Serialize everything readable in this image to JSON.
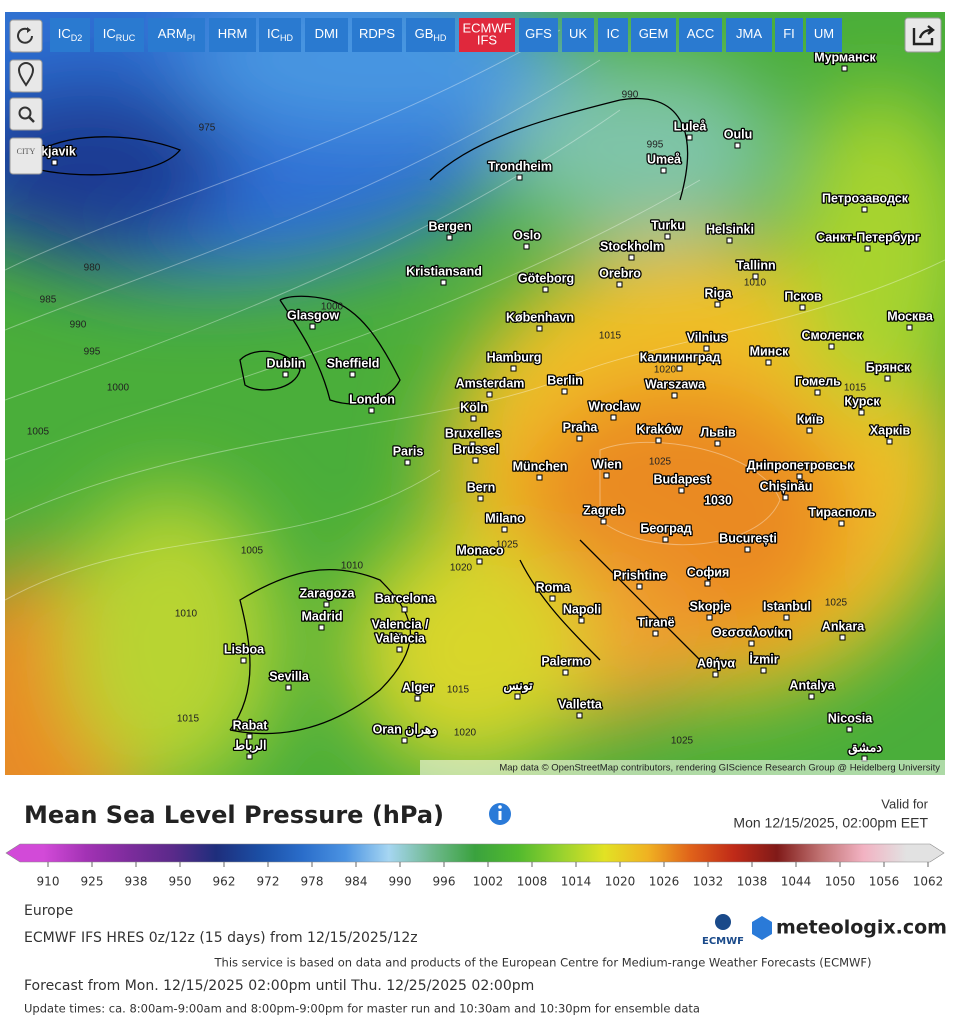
{
  "toolbar": {
    "models": [
      {
        "main": "IC",
        "sub": "D2"
      },
      {
        "main": "IC",
        "sub": "RUC"
      },
      {
        "main": "ARM",
        "sub": "PI"
      },
      {
        "main": "HRM"
      },
      {
        "main": "IC",
        "sub": "HD"
      },
      {
        "main": "DMI"
      },
      {
        "main": "RDPS"
      },
      {
        "main": "GB",
        "sub": "HD"
      },
      {
        "main": "ECMWF",
        "sub": "IFS",
        "active": true
      },
      {
        "main": "GFS"
      },
      {
        "main": "UK"
      },
      {
        "main": "IC"
      },
      {
        "main": "GEM"
      },
      {
        "main": "ACC"
      },
      {
        "main": "JMA"
      },
      {
        "main": "FI"
      },
      {
        "main": "UM"
      }
    ],
    "city_label": "CITY"
  },
  "map": {
    "cities": [
      "ykjavik",
      "Мурманск",
      "Luleå",
      "Oulu",
      "Umeå",
      "Trondheim",
      "Петрозаводск",
      "Bergen",
      "Oslo",
      "Turku",
      "Helsinki",
      "Stockholm",
      "Санкт-Петербург",
      "Tallinn",
      "Kristiansand",
      "Göteborg",
      "Orebro",
      "Riga",
      "Псков",
      "Glasgow",
      "København",
      "Vilnius",
      "Смоленск",
      "Москва",
      "Dublin",
      "Sheffield",
      "Hamburg",
      "Калининград",
      "Минск",
      "Брянск",
      "Amsterdam",
      "Berlin",
      "Warszawa",
      "Гомель",
      "Курск",
      "London",
      "Köln",
      "Wroclaw",
      "Київ",
      "Bruxelles",
      "Brussel",
      "Praha",
      "Kraków",
      "Львів",
      "Харків",
      "Paris",
      "München",
      "Wien",
      "Дніпропетровськ",
      "Budapest",
      "Chișinău",
      "Bern",
      "Zagreb",
      "Тирасполь",
      "Milano",
      "Београд",
      "București",
      "Monaco",
      "Zaragoza",
      "Barcelona",
      "Roma",
      "Prishtine",
      "София",
      "Madrid",
      "Napoli",
      "Skopje",
      "Istanbul",
      "Ankara",
      "Valencia /",
      "València",
      "Lisboa",
      "Tiranë",
      "Θεσσαλονίκη",
      "Sevilla",
      "Palermo",
      "Αθήνα",
      "İzmir",
      "Alger",
      "تونس",
      "Antalya",
      "Valletta",
      "Nicosia",
      "Rabat",
      "Oran وهران",
      "الرباط",
      "دمشق"
    ],
    "isobars": [
      990,
      995,
      975,
      980,
      985,
      990,
      995,
      1000,
      1005,
      1000,
      1015,
      1010,
      1020,
      1015,
      1025,
      1025,
      1020,
      1005,
      1010,
      1010,
      1015,
      1015,
      1020,
      1025,
      1025
    ],
    "high_label": 1030,
    "attribution": "Map data © OpenStreetMap contributors, rendering GIScience Research Group @ Heidelberg University"
  },
  "legend": {
    "title": "Mean Sea Level Pressure (hPa)",
    "valid_label": "Valid for",
    "valid_time": "Mon 12/15/2025, 02:00pm EET",
    "ticks": [
      910,
      925,
      938,
      950,
      962,
      972,
      978,
      984,
      990,
      996,
      1002,
      1008,
      1014,
      1020,
      1026,
      1032,
      1038,
      1044,
      1050,
      1056,
      1062
    ],
    "colors": [
      "#d24ad8",
      "#a232b4",
      "#7c2c9c",
      "#5a2a8a",
      "#1e2e7c",
      "#1b4ea4",
      "#2a6dca",
      "#4b93e2",
      "#a6d6f2",
      "#6fb98f",
      "#3aa23e",
      "#52ba2e",
      "#98d22e",
      "#e2e224",
      "#f0b222",
      "#e0621a",
      "#c02a18",
      "#801a18",
      "#c07272",
      "#f2b2c2",
      "#e2e2e2"
    ]
  },
  "footer": {
    "region": "Europe",
    "model_run": "ECMWF IFS HRES 0z/12z (15 days) from 12/15/2025/12z",
    "service": "This service is based on data and products of the European Centre for Medium-range Weather Forecasts (ECMWF)",
    "forecast_range": "Forecast from Mon. 12/15/2025 02:00pm until Thu. 12/25/2025 02:00pm",
    "update_times": "Update times: ca. 8:00am-9:00am and 8:00pm-9:00pm for master run and 10:30am and 10:30pm for ensemble data",
    "logo_ecmwf": "ECMWF",
    "logo_site": "meteologix.com"
  }
}
